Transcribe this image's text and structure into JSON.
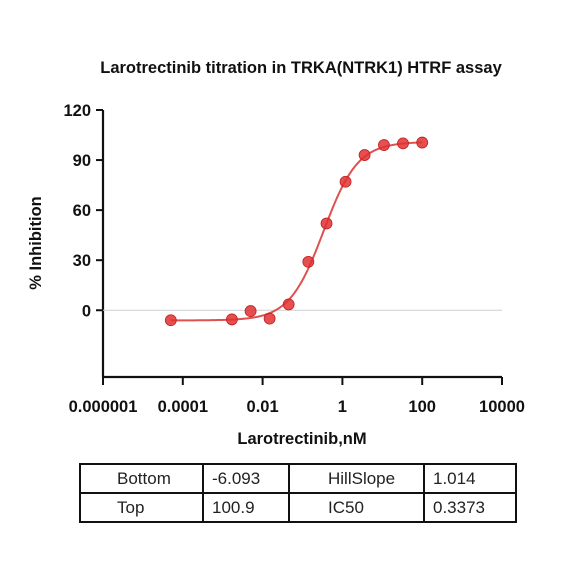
{
  "chart_data": {
    "type": "scatter",
    "title": "Larotrectinib titration in TRKA(NTRK1) HTRF assay",
    "xlabel": "Larotrectinib,nM",
    "ylabel": "% Inhibition",
    "xscale": "log",
    "xlim": [
      1e-06,
      10000
    ],
    "ylim": [
      -40,
      120
    ],
    "xticks": [
      1e-06,
      0.0001,
      0.01,
      1,
      100,
      10000
    ],
    "xtick_labels": [
      "0.000001",
      "0.0001",
      "0.01",
      "1",
      "100",
      "10000"
    ],
    "yticks": [
      0,
      30,
      60,
      90,
      120
    ],
    "ytick_labels": [
      "0",
      "30",
      "60",
      "90",
      "120"
    ],
    "zero_line": true,
    "marker_color": "#e03030",
    "curve_color": "#e05050",
    "points": [
      {
        "x": 5e-05,
        "y": -6.0
      },
      {
        "x": 0.0017,
        "y": -5.5
      },
      {
        "x": 0.005,
        "y": -0.5
      },
      {
        "x": 0.015,
        "y": -5.0
      },
      {
        "x": 0.045,
        "y": 3.5
      },
      {
        "x": 0.14,
        "y": 29.0
      },
      {
        "x": 0.4,
        "y": 52.0
      },
      {
        "x": 1.2,
        "y": 77.0
      },
      {
        "x": 3.6,
        "y": 93.0
      },
      {
        "x": 11,
        "y": 99.0
      },
      {
        "x": 33,
        "y": 100.0
      },
      {
        "x": 100,
        "y": 100.5
      }
    ],
    "fit": {
      "bottom": -6.093,
      "top": 100.9,
      "hill_slope": 1.014,
      "ic50": 0.3373
    }
  },
  "params_table": {
    "rows": [
      [
        "Bottom",
        "-6.093",
        "HillSlope",
        "1.014"
      ],
      [
        "Top",
        "100.9",
        "IC50",
        "0.3373"
      ]
    ]
  }
}
